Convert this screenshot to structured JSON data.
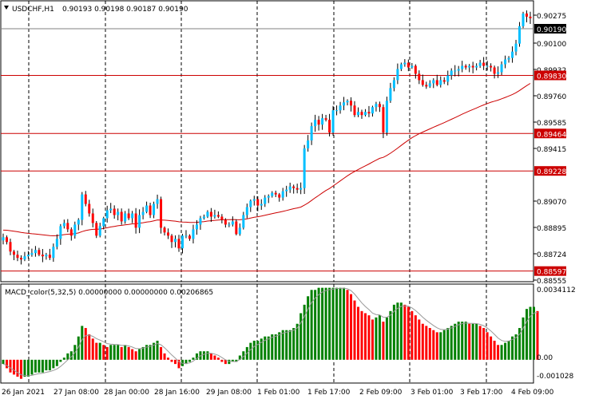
{
  "header": {
    "symbol_timeframe": "USDCHF,H1",
    "ohlc": "0.90193 0.90198 0.90187 0.90190"
  },
  "macd_header": {
    "label": "MACD_color(5,32,5) 0.00000000 0.00000000 0.00206865"
  },
  "colors": {
    "bull": "#00bfff",
    "bear": "#ff0000",
    "hline": "#cc0000",
    "ma": "#cc0000",
    "macd_pos": "#008000",
    "macd_neg": "#ff0000"
  },
  "price_axis": {
    "ticks": [
      "0.90275",
      "0.90100",
      "0.89932",
      "0.89760",
      "0.89585",
      "0.89415",
      "0.89070",
      "0.88895",
      "0.88724",
      "0.88555"
    ],
    "current_price": "0.90190",
    "levels": [
      "0.89830",
      "0.89464",
      "0.89228",
      "0.88597"
    ]
  },
  "macd_axis": {
    "ticks": [
      "0.0034112",
      "0.00",
      "-0.001028"
    ]
  },
  "time_axis": {
    "labels": [
      "26 Jan 2021",
      "27 Jan 08:00",
      "28 Jan 00:00",
      "28 Jan 16:00",
      "29 Jan 08:00",
      "1 Feb 01:00",
      "1 Feb 17:00",
      "2 Feb 09:00",
      "3 Feb 01:00",
      "3 Feb 17:00",
      "4 Feb 09:00"
    ]
  },
  "chart_data": {
    "type": "candlestick",
    "symbol": "USDCHF",
    "timeframe": "H1",
    "close": [
      0.8881,
      0.8878,
      0.8872,
      0.887,
      0.8868,
      0.8867,
      0.8869,
      0.887,
      0.8871,
      0.8873,
      0.887,
      0.8869,
      0.887,
      0.8868,
      0.8875,
      0.888,
      0.8888,
      0.889,
      0.8886,
      0.8882,
      0.8889,
      0.8892,
      0.8908,
      0.8902,
      0.8896,
      0.889,
      0.8882,
      0.8888,
      0.8893,
      0.8898,
      0.8899,
      0.8895,
      0.8897,
      0.8891,
      0.8896,
      0.8893,
      0.8896,
      0.8887,
      0.8895,
      0.8897,
      0.8901,
      0.8895,
      0.8902,
      0.8905,
      0.8887,
      0.8884,
      0.8882,
      0.8878,
      0.888,
      0.8874,
      0.8882,
      0.8882,
      0.888,
      0.8886,
      0.8889,
      0.8893,
      0.8894,
      0.8897,
      0.8894,
      0.8895,
      0.8894,
      0.8892,
      0.8889,
      0.8889,
      0.8891,
      0.8883,
      0.8887,
      0.8895,
      0.89,
      0.8904,
      0.8905,
      0.8901,
      0.8902,
      0.8906,
      0.8907,
      0.8909,
      0.8908,
      0.8906,
      0.891,
      0.8911,
      0.8913,
      0.8912,
      0.8911,
      0.8912,
      0.8937,
      0.8942,
      0.8951,
      0.8955,
      0.8952,
      0.8956,
      0.8955,
      0.8947,
      0.8961,
      0.8961,
      0.8964,
      0.8966,
      0.8967,
      0.8964,
      0.8958,
      0.896,
      0.8958,
      0.896,
      0.8959,
      0.8963,
      0.8965,
      0.8963,
      0.8947,
      0.8967,
      0.8975,
      0.898,
      0.8987,
      0.899,
      0.8991,
      0.8988,
      0.8989,
      0.8984,
      0.898,
      0.8977,
      0.8976,
      0.8978,
      0.898,
      0.8977,
      0.898,
      0.8979,
      0.8983,
      0.8986,
      0.8986,
      0.8987,
      0.8989,
      0.8988,
      0.8989,
      0.8988,
      0.8989,
      0.8991,
      0.8989,
      0.8989,
      0.8988,
      0.8984,
      0.8985,
      0.899,
      0.8993,
      0.8994,
      0.8998,
      0.9003,
      0.9014,
      0.9022,
      0.902,
      0.9019
    ],
    "reference_levels": [
      0.8983,
      0.89464,
      0.89228,
      0.88597
    ],
    "current_price": 0.9019,
    "ylim": [
      0.8853,
      0.903
    ],
    "indicator": {
      "name": "MACD_color(5,32,5)",
      "ylim": [
        -0.0011,
        0.0035
      ],
      "histogram": [
        -0.0002,
        -0.0004,
        -0.0006,
        -0.0007,
        -0.0008,
        -0.0009,
        -0.0008,
        -0.0008,
        -0.0007,
        -0.0006,
        -0.0006,
        -0.0006,
        -0.0005,
        -0.0005,
        -0.0004,
        -0.0003,
        -0.0001,
        0.0001,
        0.0003,
        0.0004,
        0.0007,
        0.0011,
        0.0016,
        0.0015,
        0.0012,
        0.001,
        0.0008,
        0.0008,
        0.0007,
        0.0006,
        0.0007,
        0.0007,
        0.0007,
        0.0006,
        0.0007,
        0.0006,
        0.0005,
        0.0004,
        0.0005,
        0.0006,
        0.0007,
        0.0007,
        0.0008,
        0.0009,
        0.0006,
        0.0003,
        0.0001,
        -0.0001,
        -0.0002,
        -0.0004,
        -0.0003,
        -0.0002,
        -0.0001,
        0.0001,
        0.0003,
        0.0004,
        0.0004,
        0.0004,
        0.0003,
        0.0002,
        0.0001,
        -0.0001,
        -0.0002,
        -0.0002,
        -0.0001,
        -0.0001,
        0.0002,
        0.0004,
        0.0006,
        0.0008,
        0.0009,
        0.0009,
        0.001,
        0.0011,
        0.0011,
        0.0012,
        0.0012,
        0.0013,
        0.0014,
        0.0014,
        0.0014,
        0.0015,
        0.0017,
        0.0022,
        0.0026,
        0.003,
        0.0033,
        0.0033,
        0.0034,
        0.0034,
        0.0034,
        0.0034,
        0.0034,
        0.0034,
        0.0034,
        0.0034,
        0.0033,
        0.0031,
        0.0028,
        0.0025,
        0.0023,
        0.0022,
        0.0021,
        0.0019,
        0.002,
        0.0021,
        0.0018,
        0.002,
        0.0023,
        0.0026,
        0.0027,
        0.0027,
        0.0026,
        0.0025,
        0.0023,
        0.0021,
        0.0019,
        0.0017,
        0.0016,
        0.0015,
        0.0014,
        0.0013,
        0.0013,
        0.0014,
        0.0015,
        0.0016,
        0.0017,
        0.0018,
        0.0018,
        0.0018,
        0.0017,
        0.0017,
        0.0017,
        0.0016,
        0.0015,
        0.0013,
        0.0011,
        0.0009,
        0.0007,
        0.0007,
        0.0008,
        0.0009,
        0.0011,
        0.0012,
        0.0015,
        0.002,
        0.0024,
        0.0025,
        0.0025,
        0.0023
      ]
    }
  }
}
